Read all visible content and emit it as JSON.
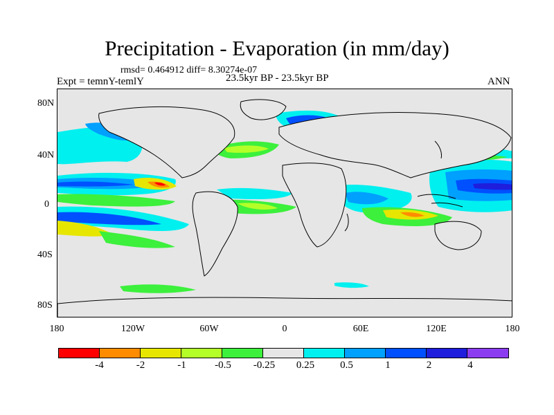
{
  "title": "Precipitation - Evaporation (in mm/day)",
  "stats": "rmsd= 0.464912 diff= 8.30274e-07",
  "left_label": "Expt = temnY-temlY",
  "center_label": "23.5kyr BP - 23.5kyr BP",
  "right_label": "ANN",
  "y_ticks": [
    "80N",
    "40N",
    "0",
    "40S",
    "80S"
  ],
  "x_ticks": [
    "180",
    "120W",
    "60W",
    "0",
    "60E",
    "120E",
    "180"
  ],
  "legend": {
    "colors": [
      "#ff0000",
      "#ff8c00",
      "#e6e600",
      "#b4ff28",
      "#3cf03c",
      "#e6e6e6",
      "#00f0f0",
      "#00a0ff",
      "#0050ff",
      "#1e1edc",
      "#8c3cf0"
    ],
    "labels": [
      "-4",
      "-2",
      "-1",
      "-0.5",
      "-0.25",
      "0.25",
      "0.5",
      "1",
      "2",
      "4"
    ]
  },
  "colors": {
    "ocean_background": "#e6e6e6",
    "coastline": "#000000"
  }
}
